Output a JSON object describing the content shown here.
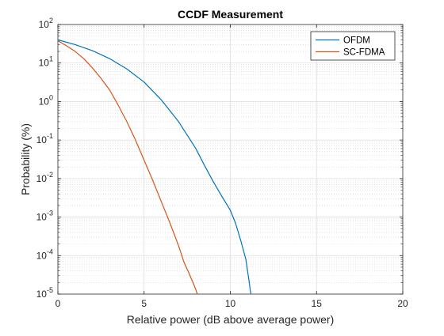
{
  "chart_data": {
    "type": "line",
    "title": "CCDF Measurement",
    "xlabel": "Relative power (dB above average power)",
    "ylabel": "Probability (%)",
    "xlim": [
      0,
      20
    ],
    "ylim": [
      1e-05,
      100
    ],
    "yscale": "log",
    "grid": true,
    "minor_grid": true,
    "legend_position": "top-right",
    "x_ticks": [
      "0",
      "5",
      "10",
      "15",
      "20"
    ],
    "y_ticks": [
      {
        "base": "10",
        "exp": "-5",
        "value": 1e-05
      },
      {
        "base": "10",
        "exp": "-4",
        "value": 0.0001
      },
      {
        "base": "10",
        "exp": "-3",
        "value": 0.001
      },
      {
        "base": "10",
        "exp": "-2",
        "value": 0.01
      },
      {
        "base": "10",
        "exp": "-1",
        "value": 0.1
      },
      {
        "base": "10",
        "exp": "0",
        "value": 1
      },
      {
        "base": "10",
        "exp": "1",
        "value": 10
      },
      {
        "base": "10",
        "exp": "2",
        "value": 100
      }
    ],
    "series": [
      {
        "name": "OFDM",
        "color": "#0072BD",
        "x": [
          0,
          1,
          2,
          3,
          4,
          5,
          6,
          7,
          8,
          8.5,
          9,
          9.5,
          10,
          10.3,
          10.6,
          10.9,
          11.0,
          11.1,
          11.15,
          11.2
        ],
        "y": [
          40,
          30,
          21,
          13,
          7,
          3.2,
          1.1,
          0.3,
          0.06,
          0.022,
          0.0085,
          0.0035,
          0.0015,
          0.0007,
          0.00025,
          8e-05,
          4e-05,
          2e-05,
          1.3e-05,
          1e-05
        ]
      },
      {
        "name": "SC-FDMA",
        "color": "#D95319",
        "x": [
          0,
          0.5,
          1,
          1.5,
          2,
          2.5,
          3,
          3.5,
          4,
          4.5,
          5,
          5.5,
          6,
          6.5,
          7,
          7.3,
          7.6,
          7.9,
          8.0,
          8.05,
          8.1
        ],
        "y": [
          38,
          28,
          20,
          13,
          7.5,
          4,
          2,
          0.8,
          0.3,
          0.1,
          0.03,
          0.009,
          0.0025,
          0.0007,
          0.00018,
          7e-05,
          3.5e-05,
          1.7e-05,
          1.3e-05,
          1.1e-05,
          1e-05
        ]
      }
    ]
  }
}
